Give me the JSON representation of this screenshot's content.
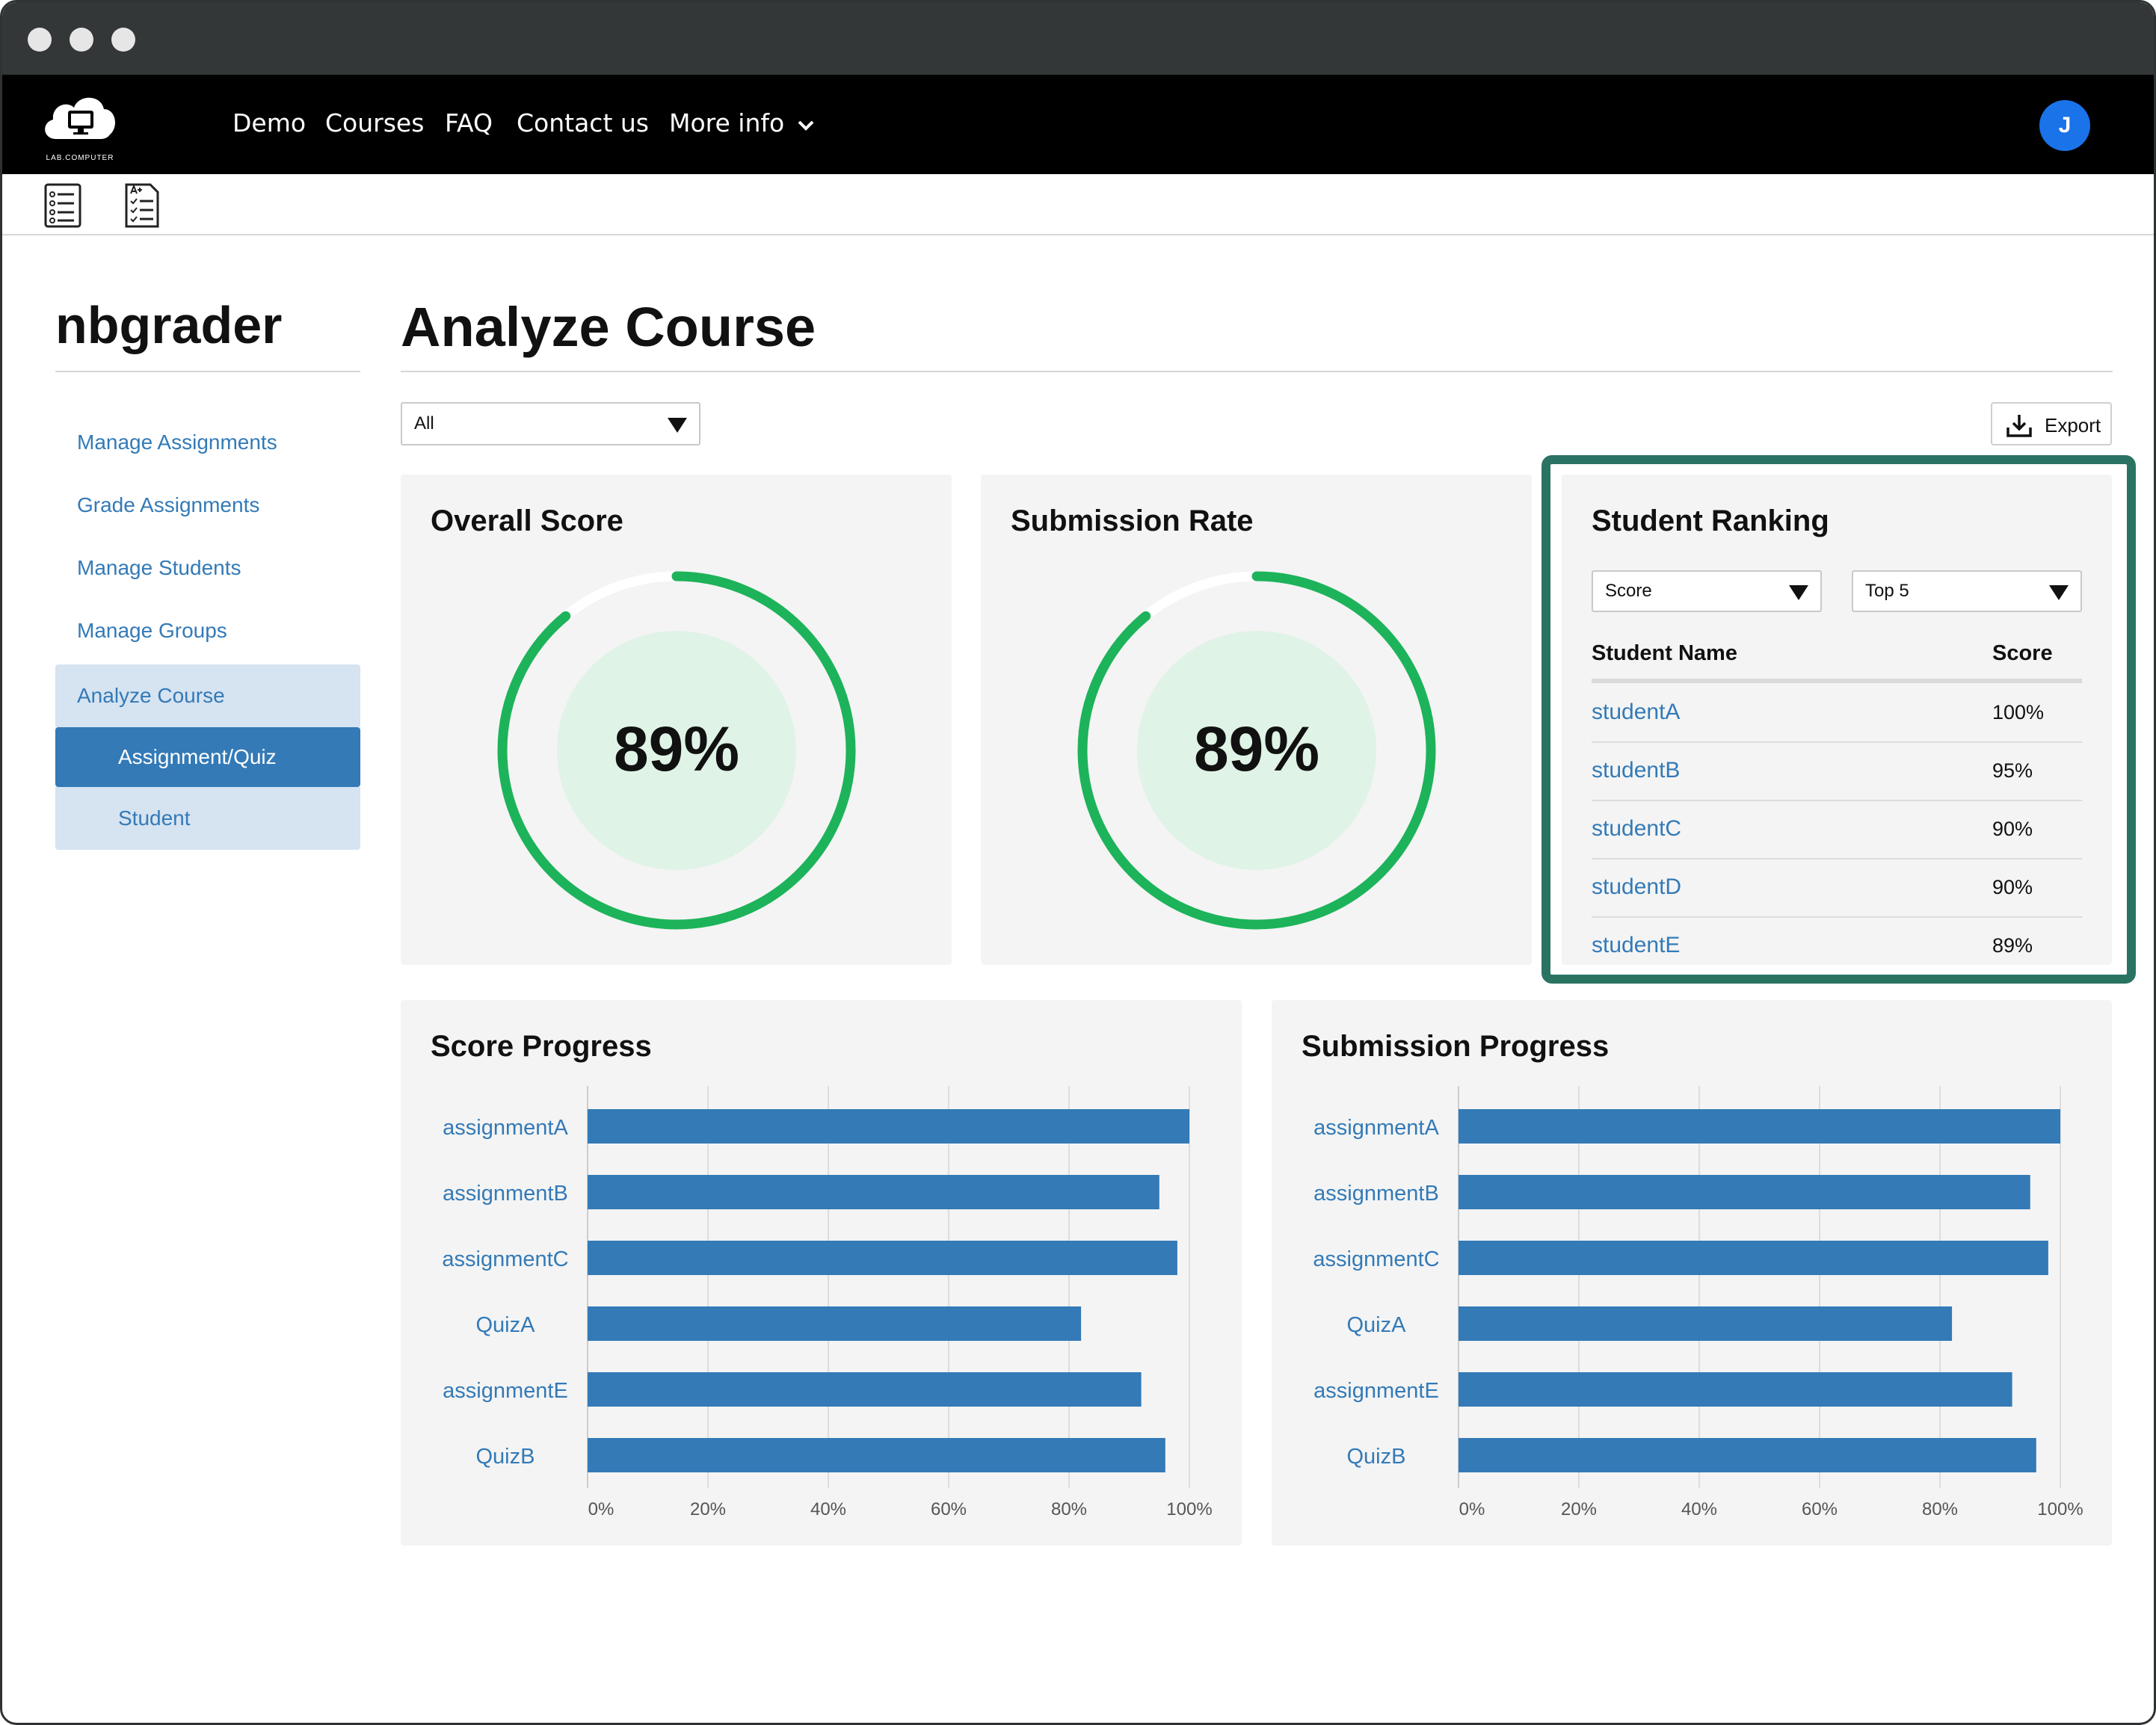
{
  "navbar": {
    "logo_text": "LAB.COMPUTER",
    "links": [
      "Demo",
      "Courses",
      "FAQ",
      "Contact us",
      "More info"
    ],
    "avatar_initial": "J"
  },
  "sidebar": {
    "title": "nbgrader",
    "items": [
      "Manage Assignments",
      "Grade Assignments",
      "Manage Students",
      "Manage Groups",
      "Analyze Course"
    ],
    "subitems": [
      "Assignment/Quiz",
      "Student"
    ]
  },
  "main": {
    "title": "Analyze Course",
    "filter_value": "All",
    "export_label": "Export"
  },
  "overall_score": {
    "title": "Overall Score",
    "value_label": "89%",
    "value": 0.89
  },
  "submission_rate": {
    "title": "Submission Rate",
    "value_label": "89%",
    "value": 0.89
  },
  "ranking": {
    "title": "Student Ranking",
    "sort_value": "Score",
    "limit_value": "Top 5",
    "col_name": "Student Name",
    "col_score": "Score",
    "rows": [
      {
        "name": "studentA",
        "score": "100%"
      },
      {
        "name": "studentB",
        "score": "95%"
      },
      {
        "name": "studentC",
        "score": "90%"
      },
      {
        "name": "studentD",
        "score": "90%"
      },
      {
        "name": "studentE",
        "score": "89%"
      }
    ]
  },
  "chart_data": [
    {
      "type": "bar",
      "orientation": "horizontal",
      "title": "Score Progress",
      "categories": [
        "assignmentA",
        "assignmentB",
        "assignmentC",
        "QuizA",
        "assignmentE",
        "QuizB"
      ],
      "values": [
        100,
        95,
        98,
        82,
        92,
        96
      ],
      "xlim": [
        0,
        100
      ],
      "ticks": [
        "0%",
        "20%",
        "40%",
        "60%",
        "80%",
        "100%"
      ],
      "bar_color": "#337ab7",
      "grid": true
    },
    {
      "type": "bar",
      "orientation": "horizontal",
      "title": "Submission Progress",
      "categories": [
        "assignmentA",
        "assignmentB",
        "assignmentC",
        "QuizA",
        "assignmentE",
        "QuizB"
      ],
      "values": [
        100,
        95,
        98,
        82,
        92,
        96
      ],
      "xlim": [
        0,
        100
      ],
      "ticks": [
        "0%",
        "20%",
        "40%",
        "60%",
        "80%",
        "100%"
      ],
      "bar_color": "#337ab7",
      "grid": true
    }
  ],
  "colors": {
    "accent": "#337ab7",
    "donut": "#1db35a",
    "highlight": "#2a7363"
  }
}
